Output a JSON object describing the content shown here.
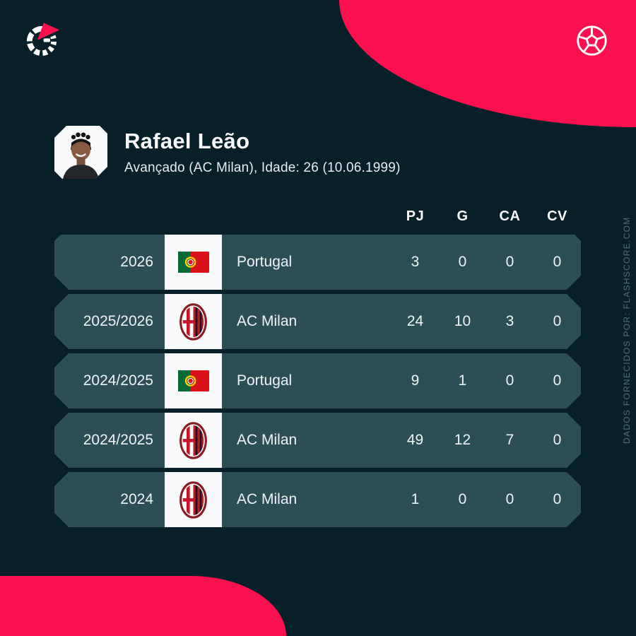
{
  "player": {
    "name": "Rafael Leão",
    "details": "Avançado (AC Milan), Idade: 26 (10.06.1999)"
  },
  "stats_table": {
    "type": "table",
    "columns": [
      "PJ",
      "G",
      "CA",
      "CV"
    ],
    "rows": [
      {
        "season": "2026",
        "team": "Portugal",
        "badge": "portugal-flag",
        "values": [
          "3",
          "0",
          "0",
          "0"
        ]
      },
      {
        "season": "2025/2026",
        "team": "AC Milan",
        "badge": "ac-milan-crest",
        "values": [
          "24",
          "10",
          "3",
          "0"
        ]
      },
      {
        "season": "2024/2025",
        "team": "Portugal",
        "badge": "portugal-flag",
        "values": [
          "9",
          "1",
          "0",
          "0"
        ]
      },
      {
        "season": "2024/2025",
        "team": "AC Milan",
        "badge": "ac-milan-crest",
        "values": [
          "49",
          "12",
          "7",
          "0"
        ]
      },
      {
        "season": "2024",
        "team": "AC Milan",
        "badge": "ac-milan-crest",
        "values": [
          "1",
          "0",
          "0",
          "0"
        ]
      }
    ]
  },
  "watermark": "DADOS FORNECIDOS POR: FLASHSCORE.COM",
  "icons": {
    "logo": "flashscore-logo",
    "ball": "football-icon",
    "avatar": "player-photo"
  },
  "colors": {
    "background": "#071f28",
    "row": "#2e4e57",
    "accent_pink": "#fb1150",
    "strip_white": "#f8fafb",
    "text": "#eef4f6",
    "watermark": "#50707b"
  }
}
